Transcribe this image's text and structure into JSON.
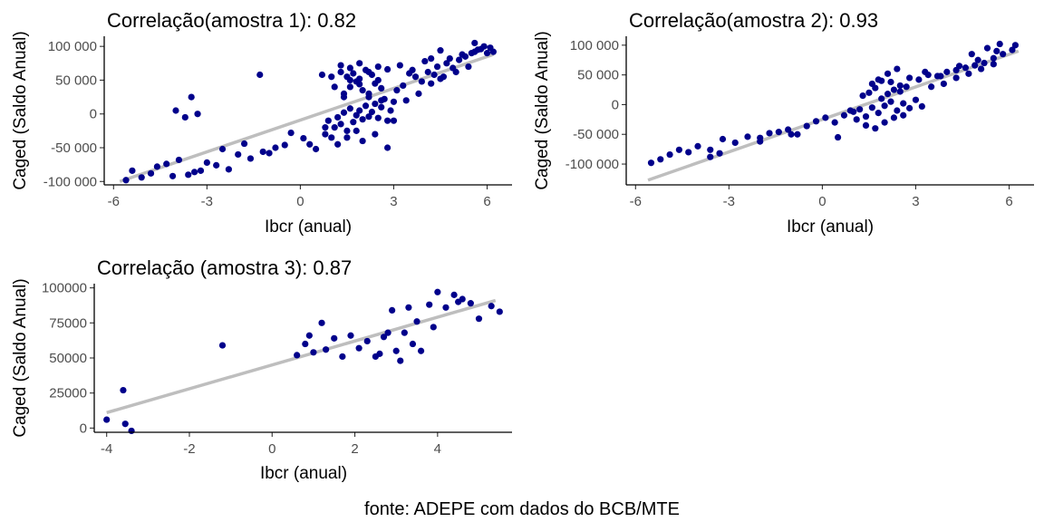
{
  "caption": "fonte: ADEPE com dados do BCB/MTE",
  "colors": {
    "points": "#00008b",
    "fit_line": "#bebebe"
  },
  "chart_data": [
    {
      "type": "scatter",
      "title": "Correlação(amostra 1):  0.82",
      "xlabel": "Ibcr (anual)",
      "ylabel": "Caged (Saldo Anual)",
      "xlim": [
        -6.3,
        6.8
      ],
      "ylim": [
        -105000,
        115000
      ],
      "xticks": [
        -6,
        -3,
        0,
        3,
        6
      ],
      "xtick_labels": [
        "-6",
        "-3",
        "0",
        "3",
        "6"
      ],
      "yticks": [
        -100000,
        -50000,
        0,
        50000,
        100000
      ],
      "ytick_labels": [
        "-100 000",
        "-50 000",
        "0",
        "50 000",
        "100 000"
      ],
      "fit_line": {
        "x": [
          -5.8,
          6.2
        ],
        "y": [
          -100000,
          88000
        ]
      },
      "points": {
        "x": [
          -5.6,
          -5.4,
          -5.1,
          -4.8,
          -4.6,
          -4.3,
          -4.1,
          -3.9,
          -3.6,
          -3.4,
          -3.2,
          -3.0,
          -2.7,
          -2.5,
          -2.3,
          -2.0,
          -1.8,
          -1.6,
          -1.2,
          -1.0,
          -0.8,
          -0.5,
          -0.3,
          0.1,
          0.3,
          0.5,
          0.8,
          0.9,
          1.1,
          1.2,
          1.3,
          1.4,
          1.5,
          1.6,
          1.7,
          1.8,
          1.9,
          2.0,
          2.1,
          2.2,
          2.3,
          2.4,
          2.5,
          2.6,
          2.7,
          2.8,
          2.9,
          3.0,
          1.4,
          1.6,
          1.8,
          2.0,
          2.2,
          2.4,
          2.6,
          1.5,
          1.7,
          1.9,
          2.1,
          2.3,
          2.5,
          1.3,
          1.6,
          1.9,
          2.2,
          2.5,
          2.8,
          3.1,
          3.3,
          3.5,
          3.7,
          3.9,
          4.1,
          4.3,
          4.5,
          4.7,
          4.9,
          5.1,
          5.3,
          5.5,
          5.7,
          5.9,
          6.1,
          3.2,
          3.6,
          4.0,
          4.4,
          4.8,
          5.2,
          5.6,
          3.4,
          3.8,
          4.2,
          4.6,
          5.0,
          5.4,
          6.0,
          0.8,
          1.0,
          1.2,
          1.0,
          1.3,
          1.6,
          1.9,
          2.2,
          0.7,
          1.1,
          1.4,
          -4.0,
          -3.7,
          -3.5,
          -3.3,
          -1.3,
          2.0,
          2.4,
          2.8,
          3.0,
          2.6,
          1.8,
          1.5,
          4.2,
          4.5,
          5.6,
          5.8,
          6.2
        ],
        "y": [
          -98000,
          -84000,
          -94000,
          -88000,
          -78000,
          -74000,
          -92000,
          -68000,
          -90000,
          -86000,
          -84000,
          -72000,
          -76000,
          -52000,
          -82000,
          -60000,
          -44000,
          -66000,
          -56000,
          -58000,
          -50000,
          -46000,
          -28000,
          -36000,
          -45000,
          -52000,
          -30000,
          -10000,
          -20000,
          -5000,
          -15000,
          2000,
          -25000,
          8000,
          -12000,
          -2000,
          5000,
          -8000,
          12000,
          -4000,
          3000,
          15000,
          -6000,
          10000,
          22000,
          -10000,
          5000,
          18000,
          30000,
          40000,
          48000,
          35000,
          25000,
          45000,
          38000,
          55000,
          60000,
          52000,
          65000,
          58000,
          50000,
          72000,
          68000,
          75000,
          62000,
          70000,
          66000,
          35000,
          42000,
          60000,
          55000,
          48000,
          62000,
          58000,
          52000,
          75000,
          68000,
          80000,
          85000,
          90000,
          95000,
          100000,
          98000,
          72000,
          65000,
          78000,
          70000,
          82000,
          88000,
          92000,
          20000,
          30000,
          45000,
          55000,
          62000,
          70000,
          90000,
          -20000,
          -35000,
          -45000,
          55000,
          62000,
          50000,
          44000,
          30000,
          58000,
          40000,
          25000,
          5000,
          -5000,
          25000,
          0,
          58000,
          -40000,
          -30000,
          -50000,
          -10000,
          20000,
          -25000,
          -35000,
          82000,
          94000,
          105000,
          96000,
          92000
        ]
      }
    },
    {
      "type": "scatter",
      "title": "Correlação(amostra 2):  0.93",
      "xlabel": "Ibcr (anual)",
      "ylabel": "Caged (Saldo Anual)",
      "xlim": [
        -6.3,
        6.8
      ],
      "ylim": [
        -135000,
        115000
      ],
      "xticks": [
        -6,
        -3,
        0,
        3,
        6
      ],
      "xtick_labels": [
        "-6",
        "-3",
        "0",
        "3",
        "6"
      ],
      "yticks": [
        -100000,
        -50000,
        0,
        50000,
        100000
      ],
      "ytick_labels": [
        "-100 000",
        "-50 000",
        "0",
        "50 000",
        "100 000"
      ],
      "fit_line": {
        "x": [
          -5.6,
          6.3
        ],
        "y": [
          -127000,
          90000
        ]
      },
      "points": {
        "x": [
          -5.5,
          -5.2,
          -4.9,
          -4.6,
          -4.3,
          -4.0,
          -3.6,
          -3.2,
          -2.8,
          -2.4,
          -2.0,
          -1.7,
          -1.4,
          -1.1,
          -0.8,
          -0.5,
          -0.2,
          0.1,
          0.4,
          0.7,
          1.0,
          1.2,
          1.4,
          1.6,
          1.8,
          2.0,
          2.2,
          2.4,
          2.6,
          2.8,
          3.0,
          3.2,
          1.3,
          1.5,
          1.7,
          1.9,
          2.1,
          2.3,
          2.5,
          2.7,
          1.6,
          1.9,
          2.2,
          2.5,
          2.8,
          3.1,
          3.4,
          3.7,
          4.0,
          4.3,
          4.6,
          4.9,
          5.2,
          5.5,
          5.8,
          6.1,
          3.5,
          3.9,
          4.3,
          4.7,
          5.1,
          5.5,
          3.3,
          3.8,
          4.4,
          5.0,
          5.6,
          6.2,
          1.1,
          1.4,
          0.9,
          1.7,
          2.0,
          2.3,
          2.6,
          -3.3,
          -3.6,
          -2.0,
          -1.0,
          0.5,
          1.8,
          2.1,
          2.4,
          4.8,
          5.3,
          5.7
        ],
        "y": [
          -98000,
          -92000,
          -84000,
          -76000,
          -80000,
          -70000,
          -76000,
          -58000,
          -64000,
          -54000,
          -56000,
          -48000,
          -46000,
          -42000,
          -50000,
          -36000,
          -28000,
          -22000,
          -30000,
          -18000,
          -12000,
          -8000,
          -20000,
          -5000,
          -14000,
          -2000,
          5000,
          -10000,
          2000,
          -6000,
          8000,
          -3000,
          15000,
          20000,
          28000,
          10000,
          18000,
          25000,
          22000,
          30000,
          35000,
          40000,
          38000,
          32000,
          45000,
          42000,
          50000,
          48000,
          55000,
          58000,
          62000,
          66000,
          70000,
          78000,
          85000,
          92000,
          30000,
          35000,
          45000,
          52000,
          60000,
          68000,
          55000,
          48000,
          65000,
          75000,
          90000,
          100000,
          -25000,
          -35000,
          -10000,
          -40000,
          -30000,
          -22000,
          -18000,
          -82000,
          -88000,
          -62000,
          -50000,
          -55000,
          42000,
          52000,
          60000,
          85000,
          95000,
          102000
        ]
      }
    },
    {
      "type": "scatter",
      "title": "Correlação (amostra 3):  0.87",
      "xlabel": "Ibcr (anual)",
      "ylabel": "Caged (Saldo Anual)",
      "xlim": [
        -4.3,
        5.8
      ],
      "ylim": [
        -3000,
        103000
      ],
      "xticks": [
        -4,
        -2,
        0,
        2,
        4
      ],
      "xtick_labels": [
        "-4",
        "-2",
        "0",
        "2",
        "4"
      ],
      "yticks": [
        0,
        25000,
        50000,
        75000,
        100000
      ],
      "ytick_labels": [
        "0",
        "25000",
        "50000",
        "75000",
        "100000"
      ],
      "fit_line": {
        "x": [
          -4.0,
          5.4
        ],
        "y": [
          11000,
          91000
        ]
      },
      "points": {
        "x": [
          -4.0,
          -3.6,
          -3.55,
          -3.4,
          -1.2,
          0.6,
          0.8,
          0.9,
          1.0,
          1.2,
          1.3,
          1.5,
          1.7,
          1.9,
          2.1,
          2.3,
          2.5,
          2.6,
          2.7,
          2.9,
          3.0,
          3.1,
          3.2,
          3.3,
          3.4,
          3.5,
          3.6,
          3.8,
          4.0,
          4.2,
          4.4,
          4.6,
          4.8,
          5.0,
          5.3,
          5.5,
          2.8,
          3.9,
          4.5
        ],
        "y": [
          6000,
          27000,
          3000,
          -2000,
          59000,
          52000,
          60000,
          66000,
          54000,
          75000,
          56000,
          64000,
          51000,
          66000,
          57000,
          62000,
          51000,
          53000,
          65000,
          84000,
          55000,
          48000,
          68000,
          86000,
          60000,
          76000,
          55000,
          88000,
          97000,
          86000,
          95000,
          92000,
          89000,
          78000,
          87000,
          83000,
          68000,
          72000,
          90000
        ]
      }
    }
  ]
}
